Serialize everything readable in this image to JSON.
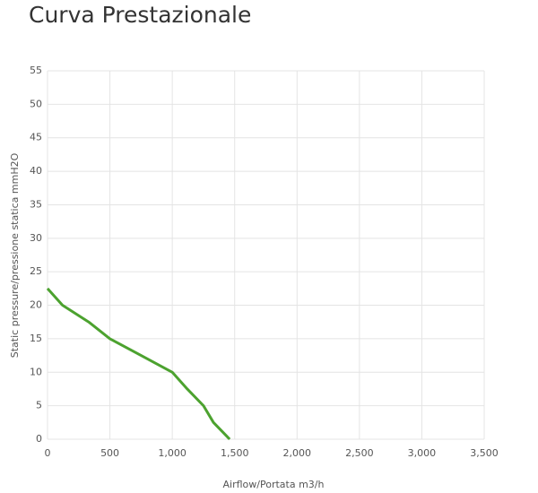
{
  "chart_data": {
    "type": "line",
    "title": "Curva Prestazionale",
    "x_label": "Airflow/Portata m3/h",
    "y_label": "Static pressure/pressione statica mmH2O",
    "x": [
      0,
      120,
      330,
      500,
      750,
      1000,
      1120,
      1250,
      1330,
      1460
    ],
    "series": [
      {
        "color": "#4ca22f",
        "values": [
          22.5,
          20,
          17.5,
          15,
          12.5,
          10,
          7.5,
          5,
          2.5,
          0
        ]
      }
    ],
    "xlim": [
      0,
      3500
    ],
    "xticks": [
      0,
      500,
      {
        "value": 1000,
        "label": "1,000"
      },
      {
        "value": 1500,
        "label": "1,500"
      },
      {
        "value": 2000,
        "label": "2,000"
      },
      {
        "value": 2500,
        "label": "2,500"
      },
      {
        "value": 3000,
        "label": "3,000"
      },
      {
        "value": 3500,
        "label": "3,500"
      }
    ],
    "ylim": [
      0,
      55
    ],
    "yticks": [
      0,
      5,
      10,
      15,
      20,
      25,
      30,
      35,
      40,
      45,
      50,
      55
    ],
    "grid": true
  }
}
